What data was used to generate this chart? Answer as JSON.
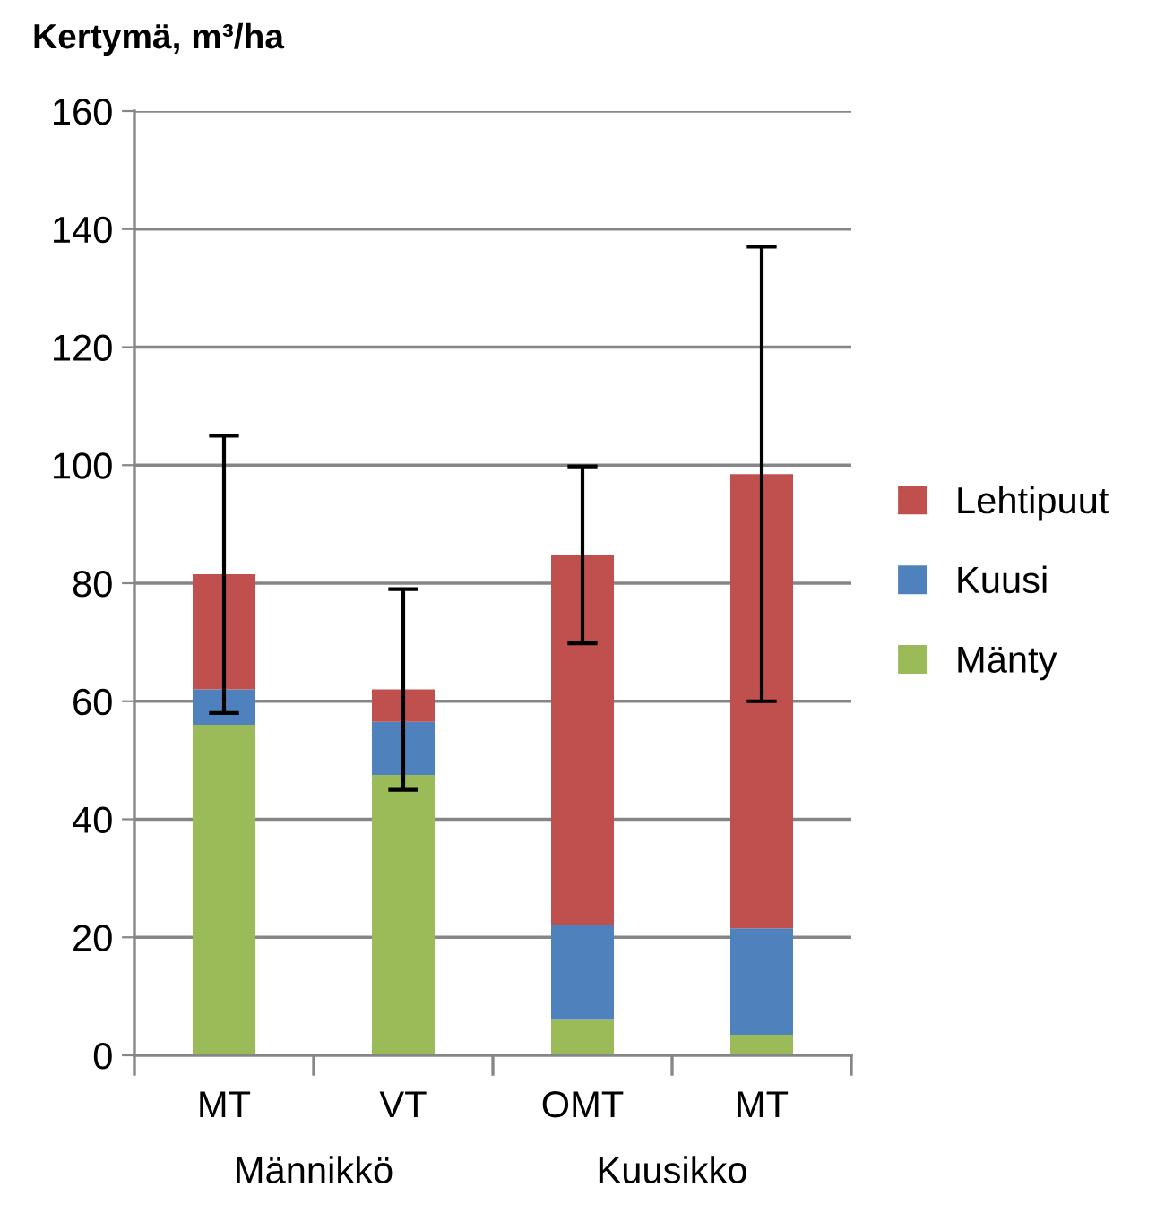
{
  "chart_data": {
    "type": "bar",
    "stacked": true,
    "ylabel": "Kertymä, m³/ha",
    "categories": [
      "MT",
      "VT",
      "OMT",
      "MT"
    ],
    "annotations": [
      "Männikkö",
      "Kuusikko"
    ],
    "series": [
      {
        "name": "Mänty",
        "color": "#9bbb59",
        "values": [
          56,
          47.5,
          6,
          3.5
        ]
      },
      {
        "name": "Kuusi",
        "color": "#4f81bd",
        "values": [
          6,
          9,
          16,
          18
        ]
      },
      {
        "name": "Lehtipuut",
        "color": "#c0504d",
        "values": [
          19.5,
          5.5,
          62.8,
          77
        ],
        "errors": [
          23.5,
          17,
          15,
          38.5
        ]
      }
    ],
    "ylim": [
      0,
      160
    ],
    "yticks": [
      0,
      20,
      40,
      60,
      80,
      100,
      120,
      140,
      160
    ],
    "grid": "y",
    "legend": "right"
  }
}
